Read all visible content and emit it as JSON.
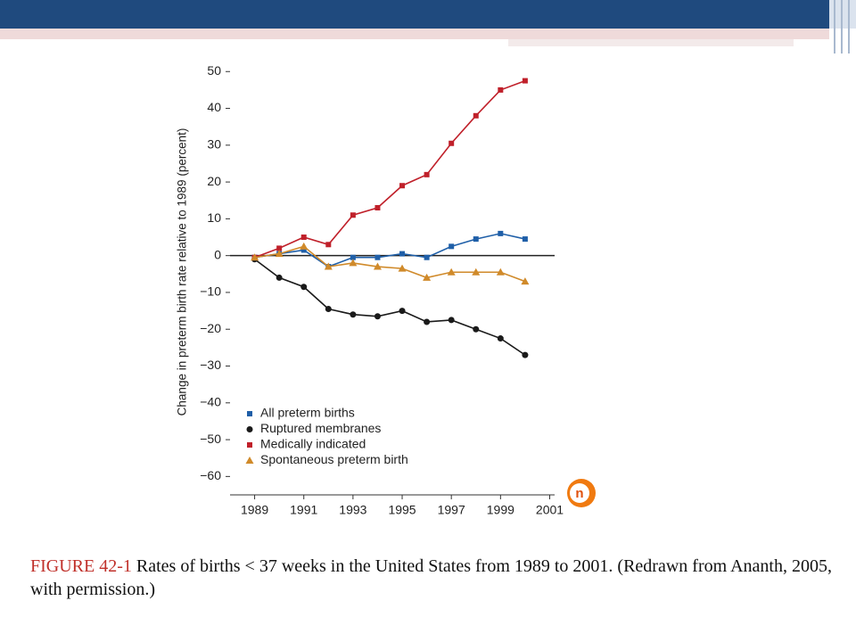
{
  "chart_data": {
    "type": "line",
    "ylabel": "Change in preterm birth rate relative to 1989 (percent)",
    "x": [
      1989,
      1990,
      1991,
      1992,
      1993,
      1994,
      1995,
      1996,
      1997,
      1998,
      1999,
      2000
    ],
    "xlim": [
      1988,
      2001.2
    ],
    "xticks": [
      1989,
      1991,
      1993,
      1995,
      1997,
      1999,
      2001
    ],
    "ylim": [
      -65,
      52
    ],
    "yticks": [
      {
        "value": -60,
        "label": "−60"
      },
      {
        "value": -50,
        "label": "−50"
      },
      {
        "value": -40,
        "label": "−40"
      },
      {
        "value": -30,
        "label": "−30"
      },
      {
        "value": -20,
        "label": "−20"
      },
      {
        "value": -10,
        "label": "−10"
      },
      0,
      10,
      20,
      30,
      40,
      50
    ],
    "legend": "lower left",
    "series": [
      {
        "name": "All preterm births",
        "color": "#1f5fa8",
        "marker": "square",
        "values": [
          -0.5,
          0.5,
          1.5,
          -3,
          -0.5,
          -0.5,
          0.5,
          -0.5,
          2.5,
          4.5,
          6,
          4.5
        ]
      },
      {
        "name": "Ruptured membranes",
        "color": "#1a1a1a",
        "marker": "circle",
        "values": [
          -1,
          -6,
          -8.5,
          -14.5,
          -16,
          -16.5,
          -15,
          -18,
          -17.5,
          -20,
          -22.5,
          -27
        ]
      },
      {
        "name": "Medically indicated",
        "color": "#c0202a",
        "marker": "square",
        "values": [
          -0.5,
          2,
          5,
          3,
          11,
          13,
          19,
          22,
          30.5,
          38,
          45,
          47.5
        ]
      },
      {
        "name": "Spontaneous preterm birth",
        "color": "#d08a2a",
        "marker": "triangle",
        "values": [
          -0.5,
          0.5,
          2.5,
          -3,
          -2,
          -3,
          -3.5,
          -6,
          -4.5,
          -4.5,
          -4.5,
          -7
        ]
      }
    ]
  },
  "caption": {
    "label": "FIGURE 42-1",
    "text": "Rates of births < 37 weeks in the United States from 1989 to 2001. (Redrawn from Ananth, 2005, with permission.)"
  }
}
